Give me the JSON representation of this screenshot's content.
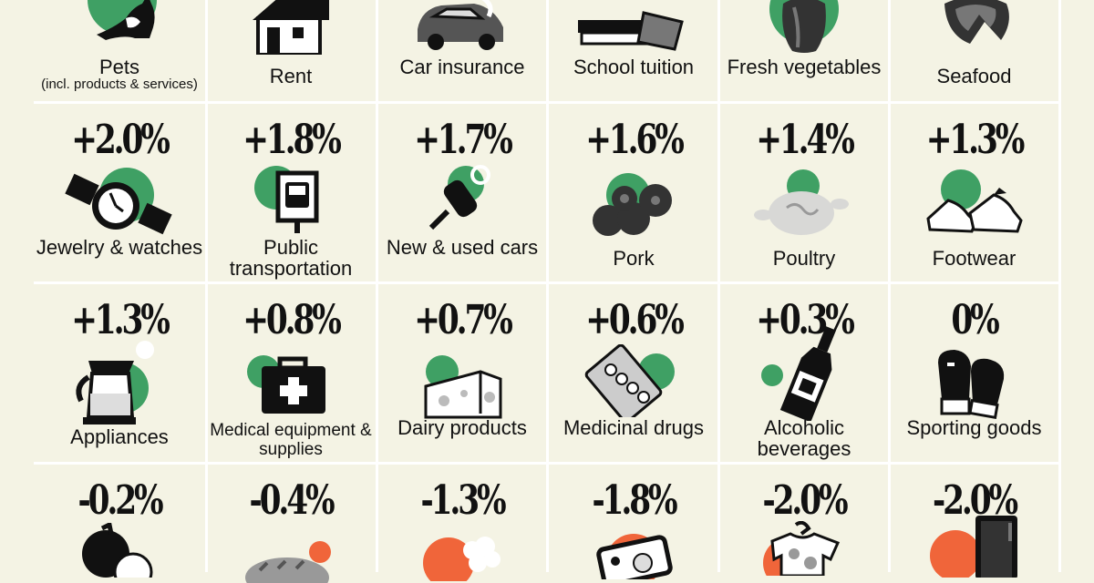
{
  "colors": {
    "background": "#f4f3e4",
    "gridline": "#ffffff",
    "positive_accent": "#3fa064",
    "negative_accent": "#f0653a",
    "ink": "#111111"
  },
  "rows": [
    {
      "items": [
        {
          "label": "Pets",
          "sublabel": "(incl. products & services)",
          "icon": "cat-icon"
        },
        {
          "label": "Rent",
          "icon": "house-icon"
        },
        {
          "label": "Car insurance",
          "icon": "crashed-car-icon"
        },
        {
          "label": "School tuition",
          "icon": "books-icon"
        },
        {
          "label": "Fresh vegetables",
          "icon": "bell-pepper-icon"
        },
        {
          "label": "Seafood",
          "icon": "fish-steak-icon"
        }
      ]
    },
    {
      "items": [
        {
          "value": "+2.0%",
          "label": "Jewelry & watches",
          "icon": "watch-icon"
        },
        {
          "value": "+1.8%",
          "label": "Public transportation",
          "icon": "bus-sign-icon"
        },
        {
          "value": "+1.7%",
          "label": "New & used cars",
          "icon": "car-key-icon"
        },
        {
          "value": "+1.6%",
          "label": "Pork",
          "icon": "sausages-icon"
        },
        {
          "value": "+1.4%",
          "label": "Poultry",
          "icon": "chicken-icon"
        },
        {
          "value": "+1.3%",
          "label": "Footwear",
          "icon": "sneakers-icon"
        }
      ]
    },
    {
      "items": [
        {
          "value": "+1.3%",
          "label": "Appliances",
          "icon": "kettle-icon"
        },
        {
          "value": "+0.8%",
          "label": "Medical equipment & supplies",
          "icon": "first-aid-kit-icon"
        },
        {
          "value": "+0.7%",
          "label": "Dairy products",
          "icon": "cheese-icon"
        },
        {
          "value": "+0.6%",
          "label": "Medicinal drugs",
          "icon": "pill-pack-icon"
        },
        {
          "value": "+0.3%",
          "label": "Alcoholic beverages",
          "icon": "bottle-icon"
        },
        {
          "value": "0%",
          "label": "Sporting goods",
          "icon": "boxing-gloves-icon"
        }
      ]
    },
    {
      "items": [
        {
          "value": "-0.2%",
          "icon": "fruit-icon"
        },
        {
          "value": "-0.4%",
          "icon": "bread-icon"
        },
        {
          "value": "-1.3%",
          "icon": "popcorn-icon"
        },
        {
          "value": "-1.8%",
          "icon": "phone-icon"
        },
        {
          "value": "-2.0%",
          "icon": "baby-clothes-icon"
        },
        {
          "value": "-2.0%",
          "icon": "refrigerator-icon"
        }
      ]
    }
  ]
}
